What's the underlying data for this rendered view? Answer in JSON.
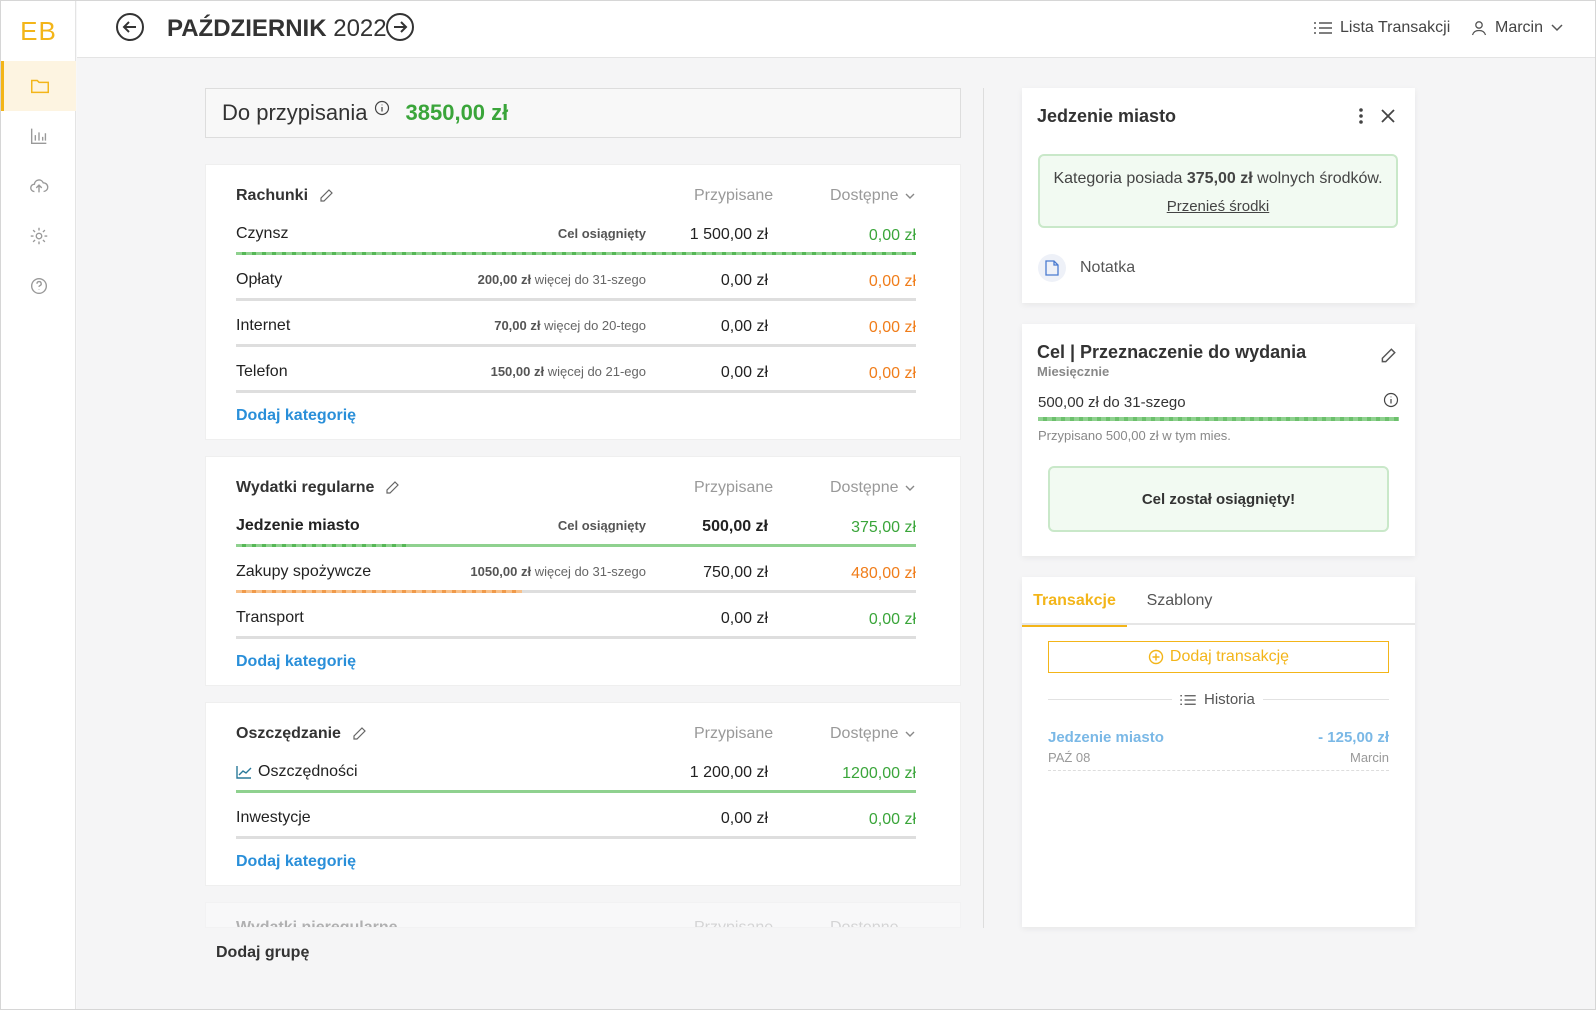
{
  "app": {
    "logo": "EB",
    "user": "Marcin",
    "list_link": "Lista Transakcji"
  },
  "header": {
    "month": "PAŹDZIERNIK",
    "year": "2022"
  },
  "sidebar": {
    "items": [
      {
        "icon": "folder-icon",
        "active": true
      },
      {
        "icon": "bar-chart-icon"
      },
      {
        "icon": "cloud-upload-icon"
      },
      {
        "icon": "gear-icon"
      },
      {
        "icon": "help-icon"
      }
    ]
  },
  "assign": {
    "label": "Do przypisania",
    "amount": "3850,00 zł"
  },
  "columns": {
    "assigned": "Przypisane",
    "available": "Dostępne"
  },
  "add_category": "Dodaj kategorię",
  "add_group": "Dodaj grupę",
  "groups": [
    {
      "name": "Rachunki",
      "rows": [
        {
          "name": "Czynsz",
          "note": "Cel osiągnięty",
          "assigned": "1 500,00 zł",
          "available": "0,00 zł",
          "status": "green",
          "progress": 1.0
        },
        {
          "name": "Opłaty",
          "note_amount": "200,00 zł",
          "note_text": " więcej do 31-szego",
          "assigned": "0,00 zł",
          "available": "0,00 zł",
          "status": "orange",
          "progress": 0
        },
        {
          "name": "Internet",
          "note_amount": "70,00 zł",
          "note_text": " więcej do 20-tego",
          "assigned": "0,00 zł",
          "available": "0,00 zł",
          "status": "orange",
          "progress": 0
        },
        {
          "name": "Telefon",
          "note_amount": "150,00 zł",
          "note_text": " więcej do 21-ego",
          "assigned": "0,00 zł",
          "available": "0,00 zł",
          "status": "orange",
          "progress": 0
        }
      ]
    },
    {
      "name": "Wydatki regularne",
      "rows": [
        {
          "name": "Jedzenie miasto",
          "note": "Cel osiągnięty",
          "assigned": "500,00 zł",
          "available": "375,00 zł",
          "status": "green",
          "progress": 1.0
        },
        {
          "name": "Zakupy spożywcze",
          "note_amount": "1050,00 zł",
          "note_text": " więcej do 31-szego",
          "assigned": "750,00 zł",
          "available": "480,00 zł",
          "status": "orange",
          "progress": 0.42
        },
        {
          "name": "Transport",
          "assigned": "0,00 zł",
          "available": "0,00 zł",
          "status": "green",
          "progress": 0
        }
      ]
    },
    {
      "name": "Oszczędzanie",
      "rows": [
        {
          "name": "Oszczędności",
          "assigned": "1 200,00 zł",
          "available": "1200,00 zł",
          "status": "green",
          "progress": 1.0
        },
        {
          "name": "Inwestycje",
          "assigned": "0,00 zł",
          "available": "0,00 zł",
          "status": "green",
          "progress": 0
        }
      ]
    },
    {
      "name": "Wydatki nieregularne"
    }
  ],
  "panel": {
    "title": "Jedzenie miasto",
    "hint_pre": "Kategoria posiada ",
    "hint_amount": "375,00 zł",
    "hint_post": " wolnych środków.",
    "transfer_link": "Przenieś środki",
    "note_label": "Notatka",
    "goal_title": "Cel | Przeznaczenie do wydania",
    "goal_freq": "Miesięcznie",
    "goal_target": "500,00 zł do 31-szego",
    "goal_progress": 1.0,
    "goal_assigned": "Przypisano 500,00 zł w tym mies.",
    "goal_done": "Cel został osiągnięty!",
    "tabs": [
      "Transakcje",
      "Szablony"
    ],
    "add_transaction": "Dodaj transakcję",
    "history_label": "Historia",
    "transactions": [
      {
        "name": "Jedzenie miasto",
        "amount": "- 125,00 zł",
        "date": "PAŹ 08",
        "user": "Marcin"
      }
    ]
  },
  "colors": {
    "accent": "#f3b519",
    "green": "#3aa53a",
    "orange": "#f07d1a",
    "link": "#2a8fd9"
  }
}
